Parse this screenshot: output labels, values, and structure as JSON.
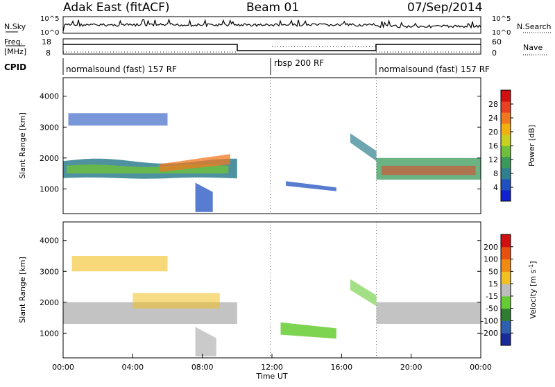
{
  "header": {
    "site": "Adak East (fitACF)",
    "beam": "Beam 01",
    "date": "07/Sep/2014"
  },
  "noise_panel": {
    "left_label": "N.Sky",
    "left_ticks": [
      "10^5",
      "10^0"
    ],
    "right_label": "N.Search",
    "right_ticks": [
      "10^5",
      "10^0"
    ]
  },
  "freq_panel": {
    "left_label_1": "Freq.",
    "left_label_2": "[MHz]",
    "left_ticks": [
      "18",
      "8"
    ],
    "right_label": "Nave",
    "right_ticks": [
      "60",
      "0"
    ]
  },
  "cpid": {
    "label": "CPID",
    "segments": [
      {
        "name": "normalsound (fast) 157 RF",
        "start_hour": 0,
        "end_hour": 11.9
      },
      {
        "name": "rbsp 200 RF",
        "start_hour": 11.9,
        "end_hour": 18.0
      },
      {
        "name": "normalsound (fast) 157 RF",
        "start_hour": 18.0,
        "end_hour": 24
      }
    ]
  },
  "chart_data": [
    {
      "type": "heatmap",
      "title": "",
      "xlabel": "",
      "ylabel": "Slant Range [km]",
      "x_range": [
        0,
        24
      ],
      "ylim": [
        200,
        4600
      ],
      "y_ticks": [
        "1000",
        "2000",
        "3000",
        "4000"
      ],
      "colorbar": {
        "label": "Power [dB]",
        "ticks": [
          "4",
          "8",
          "12",
          "16",
          "20",
          "24",
          "28"
        ],
        "range": [
          0,
          30
        ],
        "colors": [
          "#1020d0",
          "#2050c0",
          "#2f7f8f",
          "#3a9a5a",
          "#6fbf3a",
          "#c8d020",
          "#f0b010",
          "#f07820",
          "#e84020",
          "#d01010"
        ]
      },
      "features": [
        {
          "name": "main band",
          "x_start": 0,
          "x_end": 10,
          "range_km": [
            1400,
            1900
          ]
        },
        {
          "name": "upper patch",
          "x_start": 0.3,
          "x_end": 6,
          "range_km": [
            3000,
            3500
          ]
        },
        {
          "name": "descending trace",
          "x_start": 12.8,
          "x_end": 15.7,
          "range_km": [
            900,
            1100
          ]
        },
        {
          "name": "evening band",
          "x_start": 18,
          "x_end": 24,
          "range_km": [
            1300,
            2000
          ]
        }
      ]
    },
    {
      "type": "heatmap",
      "title": "",
      "xlabel": "Time UT",
      "ylabel": "Slant Range [km]",
      "x_range": [
        0,
        24
      ],
      "ylim": [
        200,
        4600
      ],
      "y_ticks": [
        "1000",
        "2000",
        "3000",
        "4000"
      ],
      "x_ticks": [
        "00:00",
        "04:00",
        "08:00",
        "12:00",
        "16:00",
        "20:00",
        "00:00"
      ],
      "colorbar": {
        "label": "Velocity [m s",
        "label_sup": "-1",
        "label_end": "]",
        "ticks": [
          "200",
          "100",
          "50",
          "15",
          "-15",
          "-50",
          "-100",
          "-200"
        ],
        "colors": [
          "#1a2a9a",
          "#2f5fb0",
          "#2e7d32",
          "#66cc33",
          "#bdbdbd",
          "#f2c020",
          "#f08a10",
          "#e85010",
          "#d01010"
        ]
      }
    }
  ]
}
